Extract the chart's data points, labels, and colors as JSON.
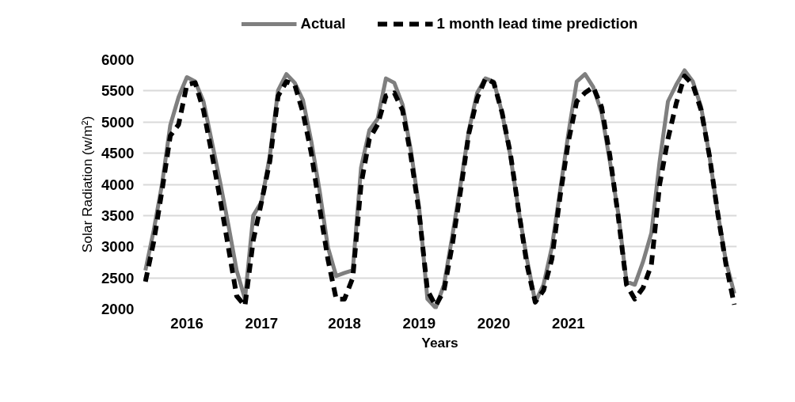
{
  "chart_data": {
    "type": "line",
    "xlabel": "Years",
    "ylabel": "Solar Radiation (w/m²)",
    "categories": [
      null,
      null,
      null,
      null,
      null,
      "2016",
      null,
      null,
      null,
      null,
      null,
      null,
      null,
      null,
      "2017",
      null,
      null,
      null,
      null,
      null,
      null,
      null,
      null,
      null,
      "2018",
      null,
      null,
      null,
      null,
      null,
      null,
      null,
      null,
      "2019",
      null,
      null,
      null,
      null,
      null,
      null,
      null,
      null,
      "2020",
      null,
      null,
      null,
      null,
      null,
      null,
      null,
      null,
      "2021",
      null,
      null,
      null,
      null,
      null,
      null,
      null,
      null,
      null,
      null,
      null,
      null,
      null,
      null,
      null,
      null,
      null,
      null,
      null,
      null
    ],
    "series": [
      {
        "name": "Actual",
        "color": "#7f7f7f",
        "line_style": "solid",
        "values": [
          2620,
          3260,
          4000,
          4950,
          5400,
          5720,
          5650,
          5330,
          4690,
          4040,
          3350,
          2620,
          2160,
          3500,
          3720,
          4460,
          5510,
          5770,
          5630,
          5350,
          4690,
          3900,
          2990,
          2530,
          2580,
          2620,
          4270,
          4870,
          5050,
          5700,
          5630,
          5280,
          4550,
          3630,
          2160,
          2020,
          2390,
          3170,
          4000,
          4870,
          5470,
          5700,
          5650,
          5150,
          4460,
          3580,
          2800,
          2110,
          2390,
          2990,
          3900,
          4820,
          5650,
          5770,
          5560,
          5150,
          4370,
          3540,
          2440,
          2390,
          2760,
          3220,
          4370,
          5330,
          5600,
          5830,
          5650,
          5240,
          4460,
          3540,
          2760,
          2250
        ]
      },
      {
        "name": "1 month lead time prediction",
        "color": "#000000",
        "line_style": "dashed",
        "values": [
          2440,
          3080,
          3900,
          4780,
          4960,
          5600,
          5630,
          5190,
          4500,
          3770,
          2990,
          2210,
          2050,
          3100,
          3720,
          4370,
          5420,
          5650,
          5600,
          5150,
          4500,
          3630,
          2800,
          2160,
          2160,
          2500,
          4000,
          4730,
          4960,
          5420,
          5470,
          5190,
          4460,
          3540,
          2300,
          2050,
          2300,
          3030,
          3900,
          4820,
          5380,
          5700,
          5630,
          5150,
          4500,
          3580,
          2710,
          2110,
          2300,
          2800,
          3810,
          4690,
          5330,
          5470,
          5560,
          5240,
          4460,
          3490,
          2390,
          2160,
          2340,
          2710,
          4000,
          4730,
          5300,
          5740,
          5600,
          5190,
          4460,
          3540,
          2710,
          2070
        ]
      }
    ],
    "ylim": [
      2000,
      6000
    ],
    "yticks": [
      2000,
      2500,
      3000,
      3500,
      4000,
      4500,
      5000,
      5500,
      6000
    ],
    "grid": "y",
    "legend": "top"
  }
}
